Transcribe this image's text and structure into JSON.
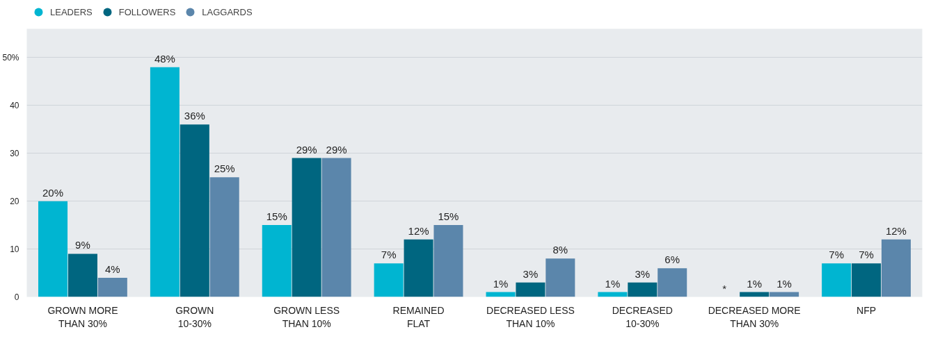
{
  "chart_data": {
    "type": "bar",
    "categories": [
      "GROWN MORE THAN 30%",
      "GROWN 10-30%",
      "GROWN LESS THAN 10%",
      "REMAINED FLAT",
      "DECREASED LESS THAN 10%",
      "DECREASED 10-30%",
      "DECREASED MORE THAN 30%",
      "NFP"
    ],
    "series": [
      {
        "name": "LEADERS",
        "color": "#00b5d1",
        "values": [
          20,
          48,
          15,
          7,
          1,
          1,
          null,
          7
        ],
        "value_labels": [
          "20%",
          "48%",
          "15%",
          "7%",
          "1%",
          "1%",
          "*",
          "7%"
        ]
      },
      {
        "name": "FOLLOWERS",
        "color": "#006680",
        "values": [
          9,
          36,
          29,
          12,
          3,
          3,
          1,
          7
        ],
        "value_labels": [
          "9%",
          "36%",
          "29%",
          "12%",
          "3%",
          "3%",
          "1%",
          "7%"
        ]
      },
      {
        "name": "LAGGARDS",
        "color": "#5b86ab",
        "values": [
          4,
          25,
          29,
          15,
          8,
          6,
          1,
          12
        ],
        "value_labels": [
          "4%",
          "25%",
          "29%",
          "15%",
          "8%",
          "6%",
          "1%",
          "12%"
        ]
      }
    ],
    "ylim": [
      0,
      56
    ],
    "yticks": [
      0,
      10,
      20,
      30,
      40,
      {
        "value": 50,
        "label": "50%"
      }
    ],
    "grid": "y",
    "legend": "top left"
  }
}
